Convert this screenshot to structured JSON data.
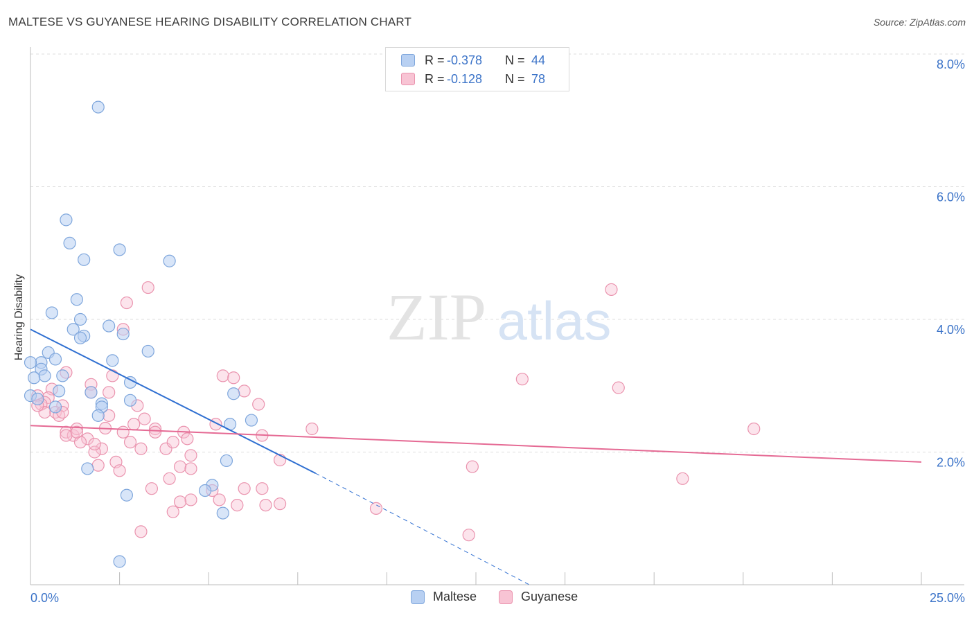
{
  "title": "MALTESE VS GUYANESE HEARING DISABILITY CORRELATION CHART",
  "source": "Source: ZipAtlas.com",
  "watermark": {
    "zip": "ZIP",
    "atlas": "atlas"
  },
  "legend": {
    "rows": [
      {
        "r_label": "R =",
        "r_value": "-0.378",
        "n_label": "N =",
        "n_value": "44",
        "fill": "#b8d0f2",
        "stroke": "#7ea6dc"
      },
      {
        "r_label": "R =",
        "r_value": "-0.128",
        "n_label": "N =",
        "n_value": "78",
        "fill": "#f8c4d4",
        "stroke": "#ea93ae"
      }
    ]
  },
  "bottom_legend": [
    {
      "label": "Maltese",
      "fill": "#b8d0f2",
      "stroke": "#7ea6dc"
    },
    {
      "label": "Guyanese",
      "fill": "#f8c4d4",
      "stroke": "#ea93ae"
    }
  ],
  "chart_data": {
    "type": "scatter",
    "title": "MALTESE VS GUYANESE HEARING DISABILITY CORRELATION CHART",
    "xlabel": "",
    "ylabel": "Hearing Disability",
    "xlim": [
      0,
      25
    ],
    "ylim": [
      0,
      8
    ],
    "x_tick_labels": [
      "0.0%",
      "25.0%"
    ],
    "y_ticks": [
      2,
      4,
      6,
      8
    ],
    "y_tick_labels": [
      "2.0%",
      "4.0%",
      "6.0%",
      "8.0%"
    ],
    "grid": true,
    "colors": {
      "maltese": "#7ea6dc",
      "guyanese": "#ea93ae",
      "maltese_line": "#2f6fd1",
      "guyanese_line": "#e56a94"
    },
    "series": [
      {
        "name": "Maltese",
        "trend": {
          "x": [
            0,
            8
          ],
          "y": [
            3.85,
            1.68
          ],
          "dashed_to": [
            14,
            0
          ]
        },
        "points": [
          [
            1.9,
            7.2
          ],
          [
            1.0,
            5.5
          ],
          [
            1.1,
            5.15
          ],
          [
            1.5,
            4.9
          ],
          [
            2.5,
            5.05
          ],
          [
            3.9,
            4.88
          ],
          [
            1.3,
            4.3
          ],
          [
            0.6,
            4.1
          ],
          [
            1.4,
            4.0
          ],
          [
            2.2,
            3.9
          ],
          [
            1.2,
            3.85
          ],
          [
            1.5,
            3.75
          ],
          [
            2.6,
            3.78
          ],
          [
            1.4,
            3.72
          ],
          [
            0.5,
            3.5
          ],
          [
            3.3,
            3.52
          ],
          [
            0.7,
            3.4
          ],
          [
            0.3,
            3.35
          ],
          [
            2.3,
            3.38
          ],
          [
            0.0,
            3.35
          ],
          [
            0.3,
            3.25
          ],
          [
            0.4,
            3.15
          ],
          [
            0.9,
            3.15
          ],
          [
            0.1,
            3.12
          ],
          [
            2.8,
            3.05
          ],
          [
            0.8,
            2.92
          ],
          [
            1.7,
            2.9
          ],
          [
            5.7,
            2.88
          ],
          [
            2.8,
            2.78
          ],
          [
            2.0,
            2.73
          ],
          [
            2.0,
            2.68
          ],
          [
            0.7,
            2.68
          ],
          [
            1.9,
            2.55
          ],
          [
            6.2,
            2.48
          ],
          [
            5.6,
            2.42
          ],
          [
            5.5,
            1.87
          ],
          [
            1.6,
            1.75
          ],
          [
            5.1,
            1.5
          ],
          [
            4.9,
            1.42
          ],
          [
            2.7,
            1.35
          ],
          [
            5.4,
            1.08
          ],
          [
            2.5,
            0.35
          ],
          [
            0.0,
            2.85
          ],
          [
            0.2,
            2.8
          ]
        ]
      },
      {
        "name": "Guyanese",
        "trend": {
          "x": [
            0,
            25
          ],
          "y": [
            2.4,
            1.85
          ]
        },
        "points": [
          [
            3.3,
            4.48
          ],
          [
            16.3,
            4.45
          ],
          [
            2.7,
            4.25
          ],
          [
            2.6,
            3.85
          ],
          [
            5.4,
            3.15
          ],
          [
            5.7,
            3.12
          ],
          [
            13.8,
            3.1
          ],
          [
            16.5,
            2.97
          ],
          [
            1.0,
            3.2
          ],
          [
            2.3,
            3.15
          ],
          [
            1.7,
            3.02
          ],
          [
            0.6,
            2.95
          ],
          [
            1.7,
            2.9
          ],
          [
            2.2,
            2.9
          ],
          [
            6.0,
            2.92
          ],
          [
            0.2,
            2.85
          ],
          [
            0.5,
            2.82
          ],
          [
            0.4,
            2.75
          ],
          [
            0.3,
            2.72
          ],
          [
            0.9,
            2.7
          ],
          [
            3.0,
            2.7
          ],
          [
            6.4,
            2.72
          ],
          [
            0.7,
            2.6
          ],
          [
            0.8,
            2.55
          ],
          [
            0.4,
            2.6
          ],
          [
            3.2,
            2.5
          ],
          [
            5.2,
            2.42
          ],
          [
            2.1,
            2.36
          ],
          [
            3.5,
            2.35
          ],
          [
            2.6,
            2.3
          ],
          [
            1.0,
            2.3
          ],
          [
            3.5,
            2.3
          ],
          [
            4.3,
            2.3
          ],
          [
            6.5,
            2.25
          ],
          [
            7.9,
            2.35
          ],
          [
            20.3,
            2.35
          ],
          [
            1.2,
            2.25
          ],
          [
            1.6,
            2.2
          ],
          [
            4.4,
            2.2
          ],
          [
            2.8,
            2.15
          ],
          [
            1.4,
            2.15
          ],
          [
            3.1,
            2.05
          ],
          [
            2.0,
            2.05
          ],
          [
            3.8,
            2.05
          ],
          [
            4.0,
            2.15
          ],
          [
            1.8,
            2.0
          ],
          [
            4.5,
            1.95
          ],
          [
            2.4,
            1.85
          ],
          [
            1.9,
            1.8
          ],
          [
            4.2,
            1.78
          ],
          [
            4.5,
            1.75
          ],
          [
            7.0,
            1.88
          ],
          [
            12.4,
            1.78
          ],
          [
            2.5,
            1.72
          ],
          [
            3.9,
            1.6
          ],
          [
            18.3,
            1.6
          ],
          [
            3.4,
            1.45
          ],
          [
            5.1,
            1.42
          ],
          [
            6.0,
            1.45
          ],
          [
            6.5,
            1.45
          ],
          [
            5.3,
            1.28
          ],
          [
            4.5,
            1.28
          ],
          [
            7.0,
            1.22
          ],
          [
            9.7,
            1.15
          ],
          [
            5.8,
            1.2
          ],
          [
            6.6,
            1.2
          ],
          [
            4.0,
            1.1
          ],
          [
            4.2,
            1.25
          ],
          [
            3.1,
            0.8
          ],
          [
            12.3,
            0.75
          ],
          [
            1.3,
            2.35
          ],
          [
            0.2,
            2.7
          ],
          [
            1.0,
            2.25
          ],
          [
            2.2,
            2.55
          ],
          [
            2.9,
            2.42
          ],
          [
            0.9,
            2.6
          ],
          [
            1.3,
            2.3
          ],
          [
            1.8,
            2.12
          ]
        ]
      }
    ]
  }
}
